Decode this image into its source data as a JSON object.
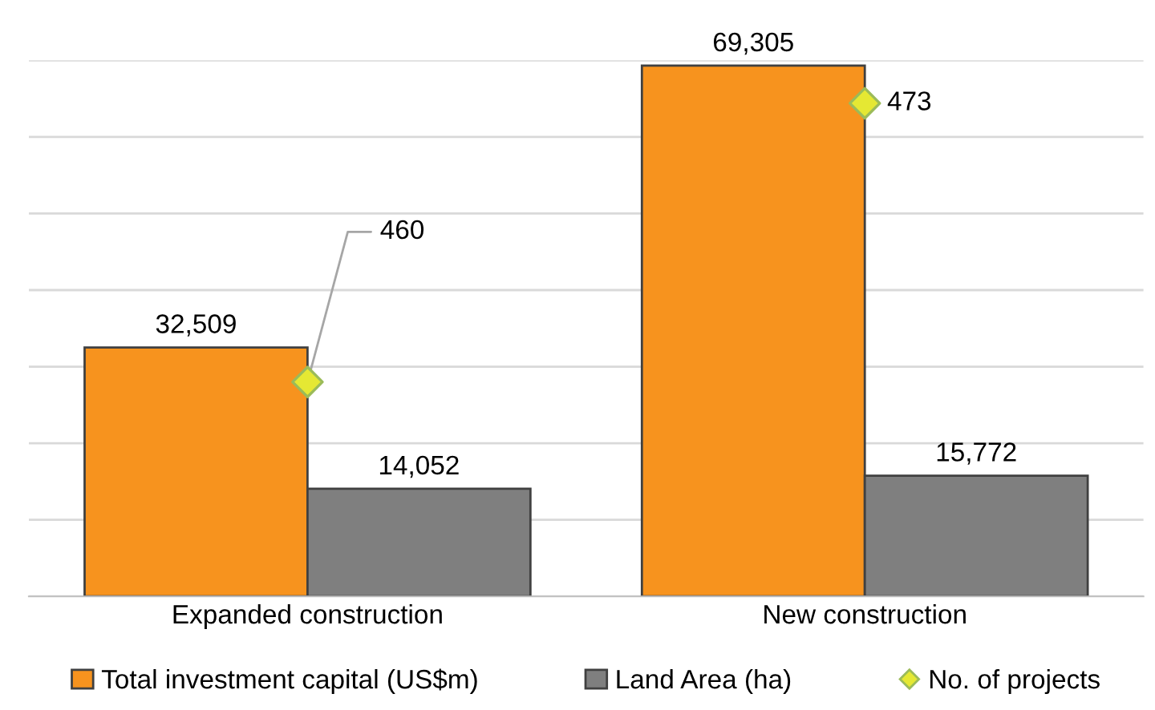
{
  "chart_data": {
    "type": "bar",
    "categories": [
      "Expanded construction",
      "New construction"
    ],
    "series": [
      {
        "name": "Total investment capital (US$m)",
        "color": "#f7931e",
        "values": [
          32509,
          69305
        ],
        "value_labels": [
          "32,509",
          "69,305"
        ]
      },
      {
        "name": "Land Area (ha)",
        "color": "#7f7f7f",
        "values": [
          14052,
          15772
        ],
        "value_labels": [
          "14,052",
          "15,772"
        ]
      },
      {
        "name": "No. of projects",
        "type": "scatter",
        "axis": "y2",
        "color": "#e5e833",
        "marker": "diamond",
        "values": [
          460,
          473
        ],
        "value_labels": [
          "460",
          "473"
        ]
      }
    ],
    "ylim": [
      0,
      70000
    ],
    "yticks": [
      {
        "value": 0,
        "label": null
      },
      {
        "value": 10000,
        "label": null
      },
      {
        "value": 20000,
        "label": null
      },
      {
        "value": 30000,
        "label": null
      },
      {
        "value": 40000,
        "label": null
      },
      {
        "value": 50000,
        "label": null
      },
      {
        "value": 60000,
        "label": null
      },
      {
        "value": 70000,
        "label": null
      }
    ],
    "y2lim": [
      450,
      475
    ],
    "grid": "y",
    "legend": "bottom",
    "tick_labels": "x"
  }
}
